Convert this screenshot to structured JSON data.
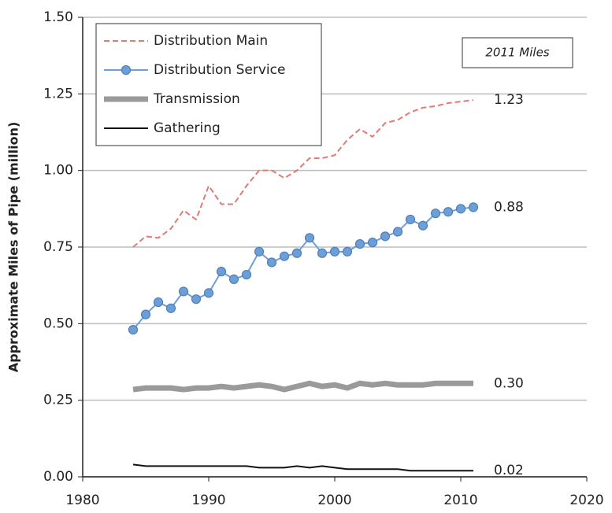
{
  "chart_data": {
    "type": "line",
    "y_label": "Approximate Miles of Pipe (million)",
    "annotation": "2011 Miles",
    "x": [
      1984,
      1985,
      1986,
      1987,
      1988,
      1989,
      1990,
      1991,
      1992,
      1993,
      1994,
      1995,
      1996,
      1997,
      1998,
      1999,
      2000,
      2001,
      2002,
      2003,
      2004,
      2005,
      2006,
      2007,
      2008,
      2009,
      2010,
      2011
    ],
    "series": [
      {
        "name": "Distribution Main",
        "color": "#e07a72",
        "dashed": true,
        "markers": false,
        "end_label": "1.23",
        "values": [
          0.75,
          0.785,
          0.78,
          0.81,
          0.87,
          0.84,
          0.95,
          0.89,
          0.89,
          0.95,
          1.0,
          1.0,
          0.975,
          1.0,
          1.04,
          1.04,
          1.05,
          1.1,
          1.135,
          1.11,
          1.155,
          1.165,
          1.19,
          1.205,
          1.21,
          1.22,
          1.225,
          1.23
        ]
      },
      {
        "name": "Distribution Service",
        "color": "#6d9fd6",
        "dashed": false,
        "markers": true,
        "end_label": "0.88",
        "values": [
          0.48,
          0.53,
          0.57,
          0.55,
          0.605,
          0.58,
          0.6,
          0.67,
          0.645,
          0.66,
          0.735,
          0.7,
          0.72,
          0.73,
          0.78,
          0.73,
          0.735,
          0.735,
          0.76,
          0.765,
          0.785,
          0.8,
          0.84,
          0.82,
          0.86,
          0.865,
          0.875,
          0.88
        ]
      },
      {
        "name": "Transmission",
        "color": "#9a9a9a",
        "dashed": false,
        "markers": false,
        "end_label": "0.30",
        "values": [
          0.285,
          0.29,
          0.29,
          0.29,
          0.285,
          0.29,
          0.29,
          0.295,
          0.29,
          0.295,
          0.3,
          0.295,
          0.285,
          0.295,
          0.305,
          0.295,
          0.3,
          0.29,
          0.305,
          0.3,
          0.305,
          0.3,
          0.3,
          0.3,
          0.305,
          0.305,
          0.305,
          0.305
        ]
      },
      {
        "name": "Gathering",
        "color": "#111111",
        "dashed": false,
        "markers": false,
        "end_label": "0.02",
        "values": [
          0.04,
          0.035,
          0.035,
          0.035,
          0.035,
          0.035,
          0.035,
          0.035,
          0.035,
          0.035,
          0.03,
          0.03,
          0.03,
          0.035,
          0.03,
          0.035,
          0.03,
          0.025,
          0.025,
          0.025,
          0.025,
          0.025,
          0.02,
          0.02,
          0.02,
          0.02,
          0.02,
          0.02
        ]
      }
    ],
    "xlim": [
      1980,
      2020
    ],
    "xticks": [
      1980,
      1990,
      2000,
      2010,
      2020
    ],
    "ylim": [
      0,
      1.5
    ],
    "yticks": [
      {
        "value": 0,
        "label": "0.00"
      },
      {
        "value": 0.25,
        "label": "0.25"
      },
      {
        "value": 0.5,
        "label": "0.50"
      },
      {
        "value": 0.75,
        "label": "0.75"
      },
      {
        "value": 1,
        "label": "1.00"
      },
      {
        "value": 1.25,
        "label": "1.25"
      },
      {
        "value": 1.5,
        "label": "1.50"
      }
    ],
    "grid": true,
    "legend": "upper left"
  }
}
